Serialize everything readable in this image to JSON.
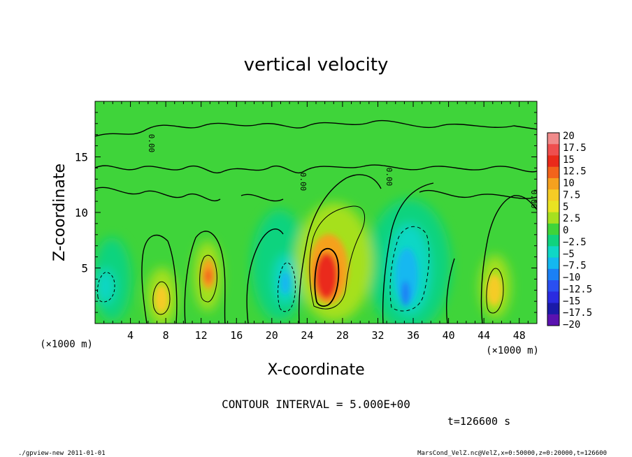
{
  "chart_data": {
    "type": "heatmap",
    "title": "vertical velocity",
    "xlabel": "X-coordinate",
    "ylabel": "Z-coordinate",
    "x_unit_left": "(×1000 m)",
    "x_unit_right": "(×1000 m)",
    "xlim": [
      0,
      50
    ],
    "ylim": [
      0,
      20
    ],
    "x_ticks": [
      4,
      8,
      12,
      16,
      20,
      24,
      28,
      32,
      36,
      40,
      44,
      48
    ],
    "y_ticks": [
      5,
      10,
      15
    ],
    "colorbar_levels": [
      "20",
      "17.5",
      "15",
      "12.5",
      "10",
      "7.5",
      "5",
      "2.5",
      "0",
      "−2.5",
      "−5",
      "−7.5",
      "−10",
      "−12.5",
      "−15",
      "−17.5",
      "−20"
    ],
    "colorbar_colors": [
      "#f08b8b",
      "#ef4f4f",
      "#ea2a1a",
      "#f2631b",
      "#f5a11f",
      "#f5cc25",
      "#e9e322",
      "#a6e01f",
      "#3fd43a",
      "#10d37e",
      "#0fd7c6",
      "#14b8f0",
      "#1b80f5",
      "#2a4ff0",
      "#2a2be0",
      "#1a1aa8",
      "#5a12b0"
    ],
    "contour_labels": [
      "0.00",
      "0.00",
      "0.00",
      "0.00"
    ],
    "contour_interval_text": "CONTOUR INTERVAL = 5.000E+00",
    "time_text": "t=126600  s",
    "background_color": "#3fd43a"
  },
  "footer": {
    "left": "./gpview-new   2011-01-01",
    "right": "MarsCond_VelZ.nc@VelZ,x=0:50000,z=0:20000,t=126600"
  }
}
